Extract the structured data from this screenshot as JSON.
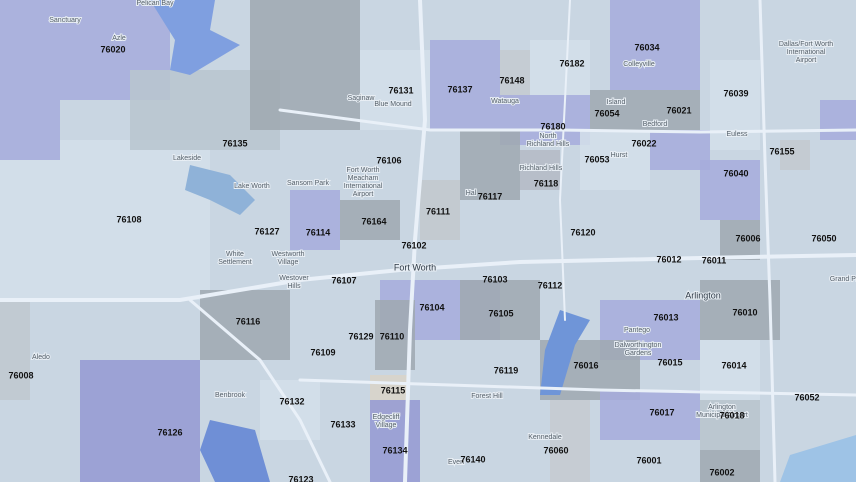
{
  "zip_labels": [
    "76020",
    "76034",
    "76182",
    "76148",
    "76131",
    "76137",
    "76039",
    "76021",
    "76054",
    "76180",
    "76135",
    "76022",
    "76155",
    "76106",
    "76053",
    "76040",
    "76118",
    "76117",
    "76108",
    "76111",
    "76164",
    "76127",
    "76114",
    "76120",
    "76006",
    "76050",
    "76102",
    "76012",
    "76011",
    "76103",
    "76107",
    "76112",
    "76104",
    "76105",
    "76116",
    "76013",
    "76010",
    "76129",
    "76110",
    "76109",
    "76016",
    "76015",
    "76014",
    "76119",
    "76008",
    "76115",
    "76132",
    "76052",
    "76017",
    "76018",
    "76133",
    "76126",
    "76134",
    "76060",
    "76140",
    "76001",
    "76002",
    "76123"
  ],
  "places": [
    [
      "Sanctuary"
    ],
    [
      "Azle"
    ],
    [
      "Pelican Bay"
    ],
    [
      "Colleyville"
    ],
    [
      "Dallas/Fort Worth",
      "International",
      "Airport"
    ],
    [
      "Saginaw"
    ],
    [
      "Blue Mound"
    ],
    [
      "Watauga"
    ],
    [
      "Island"
    ],
    [
      "Bedford"
    ],
    [
      "Euless"
    ],
    [
      "North",
      "Richland Hills"
    ],
    [
      "Richland Hills"
    ],
    [
      "Hurst"
    ],
    [
      "Lakeside"
    ],
    [
      "Lake Worth"
    ],
    [
      "Sansom Park"
    ],
    [
      "Fort Worth",
      "Meacham",
      "International",
      "Airport"
    ],
    [
      "Hal"
    ],
    [
      "White",
      "Settlement"
    ],
    [
      "Westworth",
      "Village"
    ],
    [
      "Westover",
      "Hills"
    ],
    [
      "Fort Worth"
    ],
    [
      "Arlington"
    ],
    [
      "Pantego"
    ],
    [
      "Dalworthington",
      "Gardens"
    ],
    [
      "Grand Pr"
    ],
    [
      "Aledo"
    ],
    [
      "Benbrook"
    ],
    [
      "Edgecliff",
      "Village"
    ],
    [
      "Forest Hill"
    ],
    [
      "Kennedale"
    ],
    [
      "Even"
    ],
    [
      "Arlington",
      "Municipal Airport"
    ]
  ]
}
